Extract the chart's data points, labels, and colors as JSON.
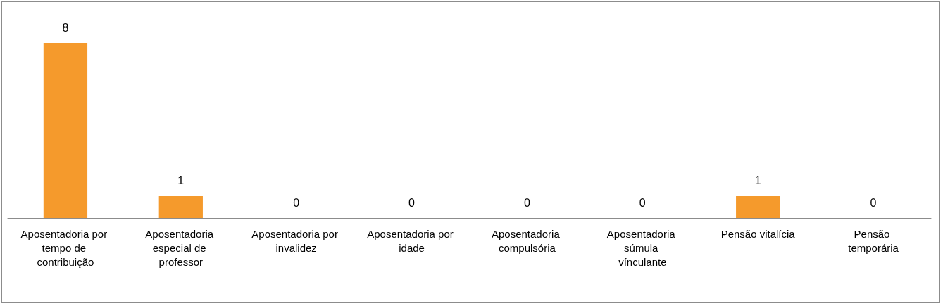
{
  "chart_data": {
    "type": "bar",
    "categories": [
      "Aposentadoria por tempo de contribuição",
      "Aposentadoria especial de professor",
      "Aposentadoria por invalidez",
      "Aposentadoria por idade",
      "Aposentadoria compulsória",
      "Aposentadoria súmula vínculante",
      "Pensão vitalícia",
      "Pensão temporária"
    ],
    "values": [
      8,
      1,
      0,
      0,
      0,
      0,
      1,
      0
    ],
    "color": "#f59a2c",
    "data_labels": true
  }
}
